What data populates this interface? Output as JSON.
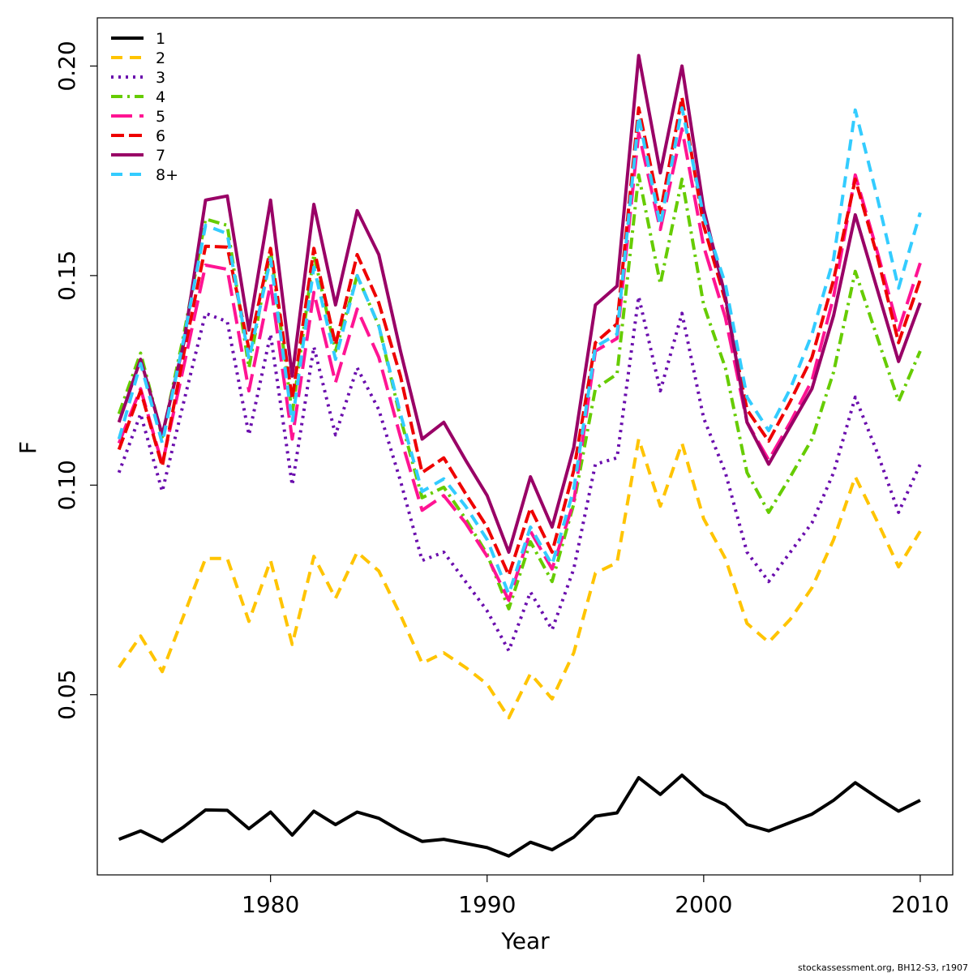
{
  "chart_data": {
    "type": "line",
    "title": "",
    "xlabel": "Year",
    "ylabel": "F",
    "xlim": [
      1972,
      2011.5
    ],
    "ylim": [
      0.007,
      0.2115
    ],
    "x_ticks": [
      1980,
      1990,
      2000,
      2010
    ],
    "y_ticks": [
      0.05,
      0.1,
      0.15,
      0.2
    ],
    "y_tick_labels": [
      "0.05",
      "0.10",
      "0.15",
      "0.20"
    ],
    "legend_position": "top-left",
    "grid": false,
    "x": [
      1973,
      1974,
      1975,
      1976,
      1977,
      1978,
      1979,
      1980,
      1981,
      1982,
      1983,
      1984,
      1985,
      1986,
      1987,
      1988,
      1989,
      1990,
      1991,
      1992,
      1993,
      1994,
      1995,
      1996,
      1997,
      1998,
      1999,
      2000,
      2001,
      2002,
      2003,
      2004,
      2005,
      2006,
      2007,
      2008,
      2009,
      2010
    ],
    "series": [
      {
        "name": "1",
        "color": "#000000",
        "dash": "solid",
        "values": [
          0.0155,
          0.0175,
          0.015,
          0.0185,
          0.0225,
          0.0224,
          0.018,
          0.022,
          0.0165,
          0.0222,
          0.019,
          0.022,
          0.0205,
          0.0175,
          0.015,
          0.0155,
          0.0145,
          0.0135,
          0.0115,
          0.0148,
          0.013,
          0.016,
          0.021,
          0.0218,
          0.0302,
          0.0262,
          0.0308,
          0.0262,
          0.0237,
          0.019,
          0.0175,
          0.0195,
          0.0215,
          0.0248,
          0.029,
          0.0255,
          0.0222,
          0.0248
        ]
      },
      {
        "name": "2",
        "color": "#FFC400",
        "dash": "14,9",
        "values": [
          0.0565,
          0.064,
          0.0555,
          0.069,
          0.0825,
          0.0825,
          0.0675,
          0.082,
          0.062,
          0.083,
          0.073,
          0.084,
          0.0795,
          0.069,
          0.0575,
          0.06,
          0.0565,
          0.0525,
          0.0445,
          0.055,
          0.049,
          0.06,
          0.079,
          0.0815,
          0.111,
          0.095,
          0.11,
          0.092,
          0.0825,
          0.067,
          0.0625,
          0.068,
          0.0755,
          0.087,
          0.102,
          0.0915,
          0.0805,
          0.089
        ]
      },
      {
        "name": "3",
        "color": "#6A0DAD",
        "dash": "3,6",
        "values": [
          0.103,
          0.117,
          0.0985,
          0.12,
          0.141,
          0.139,
          0.112,
          0.136,
          0.1,
          0.133,
          0.112,
          0.128,
          0.118,
          0.101,
          0.082,
          0.084,
          0.077,
          0.07,
          0.0605,
          0.0745,
          0.0655,
          0.08,
          0.105,
          0.1065,
          0.145,
          0.1225,
          0.141,
          0.116,
          0.103,
          0.084,
          0.077,
          0.084,
          0.091,
          0.103,
          0.121,
          0.108,
          0.0935,
          0.105
        ]
      },
      {
        "name": "4",
        "color": "#66CC00",
        "dash": "14,6,3,6",
        "values": [
          0.117,
          0.1315,
          0.1115,
          0.136,
          0.1635,
          0.162,
          0.128,
          0.156,
          0.117,
          0.155,
          0.132,
          0.15,
          0.138,
          0.116,
          0.097,
          0.0995,
          0.092,
          0.0835,
          0.0705,
          0.0865,
          0.077,
          0.0955,
          0.123,
          0.1265,
          0.174,
          0.148,
          0.173,
          0.143,
          0.128,
          0.103,
          0.0935,
          0.102,
          0.111,
          0.127,
          0.151,
          0.1355,
          0.12,
          0.132
        ]
      },
      {
        "name": "5",
        "color": "#FF1493",
        "dash": "26,9",
        "values": [
          0.11,
          0.123,
          0.105,
          0.1285,
          0.1525,
          0.1515,
          0.1225,
          0.148,
          0.111,
          0.146,
          0.1245,
          0.142,
          0.1305,
          0.1115,
          0.094,
          0.0975,
          0.091,
          0.083,
          0.0725,
          0.089,
          0.08,
          0.096,
          0.132,
          0.135,
          0.184,
          0.161,
          0.185,
          0.157,
          0.14,
          0.115,
          0.106,
          0.115,
          0.125,
          0.145,
          0.174,
          0.156,
          0.137,
          0.153
        ]
      },
      {
        "name": "6",
        "color": "#EE0000",
        "dash": "16,6",
        "values": [
          0.1085,
          0.1225,
          0.1045,
          0.1315,
          0.157,
          0.1568,
          0.1325,
          0.1565,
          0.1205,
          0.1565,
          0.1335,
          0.155,
          0.1435,
          0.126,
          0.103,
          0.1065,
          0.098,
          0.09,
          0.0785,
          0.0945,
          0.084,
          0.1035,
          0.134,
          0.1385,
          0.19,
          0.165,
          0.1925,
          0.162,
          0.144,
          0.118,
          0.1105,
          0.12,
          0.1305,
          0.149,
          0.173,
          0.155,
          0.134,
          0.149
        ]
      },
      {
        "name": "7",
        "color": "#990066",
        "dash": "solid",
        "values": [
          0.115,
          0.13,
          0.112,
          0.134,
          0.168,
          0.169,
          0.137,
          0.168,
          0.126,
          0.167,
          0.143,
          0.1655,
          0.155,
          0.132,
          0.111,
          0.115,
          0.106,
          0.0975,
          0.084,
          0.102,
          0.09,
          0.109,
          0.143,
          0.1475,
          0.2025,
          0.1745,
          0.2,
          0.166,
          0.145,
          0.115,
          0.105,
          0.114,
          0.123,
          0.1405,
          0.1645,
          0.147,
          0.1295,
          0.1435
        ]
      },
      {
        "name": "8+",
        "color": "#33CCFF",
        "dash": "14,9",
        "values": [
          0.111,
          0.129,
          0.11,
          0.135,
          0.162,
          0.16,
          0.13,
          0.154,
          0.115,
          0.152,
          0.13,
          0.15,
          0.138,
          0.117,
          0.0985,
          0.1015,
          0.095,
          0.087,
          0.074,
          0.09,
          0.081,
          0.099,
          0.133,
          0.136,
          0.188,
          0.162,
          0.19,
          0.164,
          0.148,
          0.121,
          0.113,
          0.123,
          0.136,
          0.154,
          0.1895,
          0.169,
          0.147,
          0.165
        ]
      }
    ]
  },
  "credit": "stockassessment.org, BH12-S3, r1907"
}
